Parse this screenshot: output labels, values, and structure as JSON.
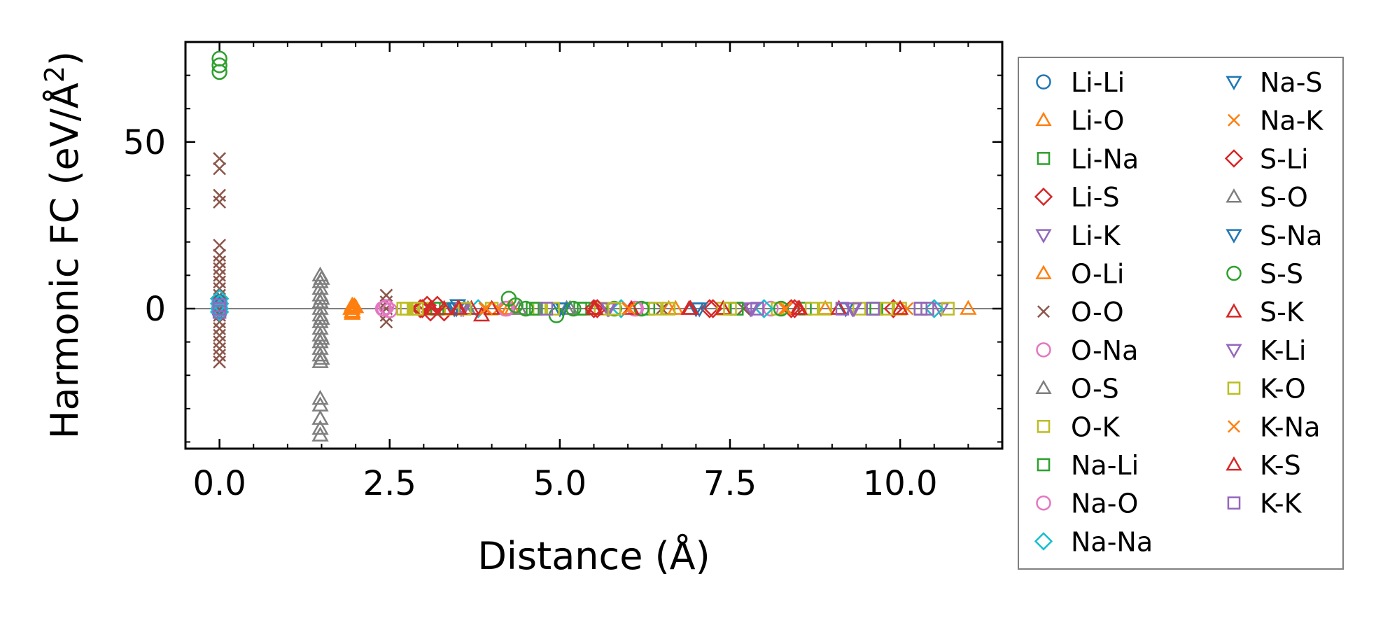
{
  "chart_data": {
    "type": "scatter",
    "xlabel": "Distance (Å)",
    "ylabel": "Harmonic FC (eV/Å²)",
    "ylabel_base": "Harmonic FC (eV/Å",
    "ylabel_sup": "2",
    "ylabel_close": ")",
    "xlim": [
      -0.5,
      11.5
    ],
    "ylim": [
      -42,
      80
    ],
    "xticks": [
      0.0,
      2.5,
      5.0,
      7.5,
      10.0
    ],
    "xtick_labels": [
      "0.0",
      "2.5",
      "5.0",
      "7.5",
      "10.0"
    ],
    "yticks": [
      0,
      50
    ],
    "ytick_labels": [
      "0",
      "50"
    ],
    "x_minor_step": 0.5,
    "y_minor_step": 10,
    "zero_line": true,
    "legend_position": "outside-right",
    "legend_columns": 2,
    "series": [
      {
        "name": "Li-Li",
        "marker": "circle",
        "color": "#1f77b4",
        "points": [
          [
            0,
            0
          ],
          [
            0,
            1
          ],
          [
            0,
            2
          ],
          [
            0,
            -1
          ],
          [
            0,
            0.5
          ],
          [
            0,
            1.5
          ]
        ]
      },
      {
        "name": "Li-O",
        "marker": "triangle-up",
        "color": "#ff7f0e",
        "points": [
          [
            1.95,
            0
          ],
          [
            1.95,
            -1
          ],
          [
            1.95,
            1
          ],
          [
            1.95,
            -1.5
          ],
          [
            2.0,
            0.5
          ],
          [
            4.25,
            0
          ],
          [
            6.6,
            0
          ],
          [
            7.4,
            0
          ],
          [
            9.1,
            0
          ],
          [
            11.0,
            0
          ]
        ]
      },
      {
        "name": "Li-Na",
        "marker": "square",
        "color": "#2ca02c",
        "points": [
          [
            3.15,
            0
          ],
          [
            4.6,
            0
          ],
          [
            5.3,
            0
          ],
          [
            6.3,
            0
          ],
          [
            7.6,
            0
          ],
          [
            8.6,
            0
          ],
          [
            9.6,
            0
          ],
          [
            10.3,
            0
          ]
        ]
      },
      {
        "name": "Li-S",
        "marker": "diamond",
        "color": "#d62728",
        "points": [
          [
            2.95,
            0
          ],
          [
            3.05,
            1
          ],
          [
            3.3,
            -1
          ],
          [
            5.5,
            0
          ],
          [
            7.2,
            0
          ],
          [
            8.4,
            0
          ],
          [
            9.9,
            0
          ]
        ]
      },
      {
        "name": "Li-K",
        "marker": "triangle-down",
        "color": "#9467bd",
        "points": [
          [
            3.55,
            0
          ],
          [
            5.7,
            0
          ],
          [
            7.8,
            0
          ],
          [
            9.3,
            0
          ],
          [
            10.6,
            0
          ]
        ]
      },
      {
        "name": "O-Li",
        "marker": "triangle-up",
        "color": "#ff7f0e",
        "points": [
          [
            1.93,
            0
          ],
          [
            1.95,
            -0.8
          ],
          [
            1.98,
            0.8
          ],
          [
            4.3,
            0
          ],
          [
            6.7,
            0
          ],
          [
            8.9,
            0
          ]
        ]
      },
      {
        "name": "O-O",
        "marker": "x",
        "color": "#8c564b",
        "points": [
          [
            0,
            45
          ],
          [
            0,
            42
          ],
          [
            0,
            34
          ],
          [
            0,
            32
          ],
          [
            0,
            19
          ],
          [
            0,
            16
          ],
          [
            0,
            14
          ],
          [
            0,
            12
          ],
          [
            0,
            10
          ],
          [
            0,
            8
          ],
          [
            0,
            6
          ],
          [
            0,
            4
          ],
          [
            0,
            2
          ],
          [
            0,
            0
          ],
          [
            0,
            -2
          ],
          [
            0,
            -4
          ],
          [
            0,
            -6
          ],
          [
            0,
            -8
          ],
          [
            0,
            -10
          ],
          [
            0,
            -12
          ],
          [
            0,
            -14
          ],
          [
            0,
            -16
          ],
          [
            2.45,
            4
          ],
          [
            2.45,
            2
          ],
          [
            2.45,
            0
          ],
          [
            2.45,
            -2
          ],
          [
            2.45,
            -4
          ],
          [
            4.1,
            0
          ],
          [
            6.5,
            0
          ],
          [
            7.7,
            0
          ]
        ]
      },
      {
        "name": "O-Na",
        "marker": "circle",
        "color": "#e377c2",
        "points": [
          [
            2.4,
            0
          ],
          [
            2.45,
            0.5
          ],
          [
            2.5,
            -0.5
          ],
          [
            4.2,
            0
          ],
          [
            6.1,
            0
          ],
          [
            8.1,
            0
          ]
        ]
      },
      {
        "name": "O-S",
        "marker": "triangle-up",
        "color": "#7f7f7f",
        "points": [
          [
            1.48,
            10
          ],
          [
            1.48,
            8
          ],
          [
            1.48,
            6
          ],
          [
            1.48,
            4
          ],
          [
            1.48,
            2
          ],
          [
            1.48,
            0
          ],
          [
            1.48,
            -2
          ],
          [
            1.48,
            -4
          ],
          [
            1.48,
            -6
          ],
          [
            1.48,
            -8
          ],
          [
            1.48,
            -10
          ],
          [
            1.48,
            -12
          ],
          [
            1.48,
            -14
          ],
          [
            1.48,
            -16
          ],
          [
            1.48,
            -27
          ],
          [
            1.48,
            -29
          ],
          [
            1.48,
            -33
          ],
          [
            1.48,
            -36
          ],
          [
            1.48,
            -38
          ],
          [
            3.6,
            0
          ],
          [
            4.4,
            0
          ],
          [
            5.1,
            0
          ]
        ]
      },
      {
        "name": "O-K",
        "marker": "square",
        "color": "#bcbd22",
        "points": [
          [
            2.7,
            0
          ],
          [
            2.85,
            0
          ],
          [
            3.0,
            0
          ],
          [
            3.4,
            0
          ],
          [
            4.0,
            0
          ],
          [
            4.7,
            0
          ],
          [
            5.6,
            0
          ],
          [
            6.4,
            0
          ],
          [
            7.4,
            0
          ],
          [
            8.2,
            0
          ],
          [
            8.9,
            0
          ],
          [
            9.4,
            0
          ],
          [
            10.0,
            0
          ],
          [
            10.7,
            0
          ]
        ]
      },
      {
        "name": "Na-Li",
        "marker": "square",
        "color": "#2ca02c",
        "points": [
          [
            3.2,
            0
          ],
          [
            4.65,
            0
          ],
          [
            5.35,
            0
          ],
          [
            7.6,
            0
          ],
          [
            9.65,
            0
          ]
        ]
      },
      {
        "name": "Na-O",
        "marker": "circle",
        "color": "#e377c2",
        "points": [
          [
            2.42,
            0
          ],
          [
            4.22,
            0
          ],
          [
            6.12,
            0
          ]
        ]
      },
      {
        "name": "Na-Na",
        "marker": "diamond",
        "color": "#17becf",
        "points": [
          [
            0,
            0
          ],
          [
            0,
            1.5
          ],
          [
            0,
            3
          ],
          [
            0,
            -1
          ],
          [
            3.8,
            0
          ],
          [
            5.9,
            0
          ],
          [
            8.0,
            0
          ],
          [
            10.5,
            0
          ]
        ]
      },
      {
        "name": "Na-S",
        "marker": "triangle-down",
        "color": "#1f77b4",
        "points": [
          [
            3.45,
            0
          ],
          [
            3.5,
            1
          ],
          [
            5.0,
            0
          ],
          [
            7.0,
            0
          ],
          [
            9.2,
            0
          ]
        ]
      },
      {
        "name": "Na-K",
        "marker": "x",
        "color": "#ff7f0e",
        "points": [
          [
            3.9,
            0
          ],
          [
            4.1,
            0
          ],
          [
            6.0,
            0
          ],
          [
            8.3,
            0
          ],
          [
            10.1,
            0
          ]
        ]
      },
      {
        "name": "S-Li",
        "marker": "diamond",
        "color": "#d62728",
        "points": [
          [
            2.98,
            0
          ],
          [
            3.1,
            -1
          ],
          [
            3.2,
            1
          ],
          [
            5.55,
            0
          ],
          [
            7.25,
            0
          ],
          [
            8.45,
            0
          ]
        ]
      },
      {
        "name": "S-O",
        "marker": "triangle-up",
        "color": "#7f7f7f",
        "points": [
          [
            1.5,
            9
          ],
          [
            1.5,
            3
          ],
          [
            1.5,
            -3
          ],
          [
            1.5,
            -9
          ],
          [
            1.5,
            -15
          ],
          [
            3.65,
            0
          ],
          [
            5.15,
            0
          ]
        ]
      },
      {
        "name": "S-Na",
        "marker": "triangle-down",
        "color": "#1f77b4",
        "points": [
          [
            3.48,
            0
          ],
          [
            5.05,
            0
          ],
          [
            7.05,
            0
          ]
        ]
      },
      {
        "name": "S-S",
        "marker": "circle",
        "color": "#2ca02c",
        "points": [
          [
            0,
            75
          ],
          [
            0,
            73
          ],
          [
            0,
            71
          ],
          [
            4.25,
            3
          ],
          [
            4.35,
            1
          ],
          [
            4.5,
            0
          ],
          [
            4.95,
            -2
          ],
          [
            5.2,
            0
          ],
          [
            5.8,
            0
          ],
          [
            6.2,
            0
          ],
          [
            8.25,
            0
          ]
        ]
      },
      {
        "name": "S-K",
        "marker": "triangle-up",
        "color": "#d62728",
        "points": [
          [
            3.1,
            0
          ],
          [
            3.3,
            0
          ],
          [
            3.5,
            0
          ],
          [
            3.7,
            0
          ],
          [
            3.85,
            -2
          ],
          [
            4.0,
            0
          ],
          [
            5.5,
            0
          ],
          [
            6.05,
            0
          ],
          [
            6.9,
            0
          ],
          [
            7.4,
            0
          ],
          [
            8.5,
            0
          ],
          [
            10.0,
            0
          ]
        ]
      },
      {
        "name": "K-Li",
        "marker": "triangle-down",
        "color": "#9467bd",
        "points": [
          [
            3.58,
            0
          ],
          [
            5.72,
            0
          ],
          [
            7.82,
            0
          ],
          [
            9.32,
            0
          ]
        ]
      },
      {
        "name": "K-O",
        "marker": "square",
        "color": "#bcbd22",
        "points": [
          [
            2.75,
            0
          ],
          [
            2.9,
            0
          ],
          [
            3.6,
            0
          ],
          [
            4.9,
            0
          ],
          [
            5.8,
            0
          ],
          [
            6.6,
            0
          ],
          [
            7.5,
            0
          ],
          [
            8.7,
            0
          ],
          [
            9.8,
            0
          ],
          [
            10.4,
            0
          ]
        ]
      },
      {
        "name": "K-Na",
        "marker": "x",
        "color": "#ff7f0e",
        "points": [
          [
            3.92,
            0
          ],
          [
            6.02,
            0
          ],
          [
            8.32,
            0
          ]
        ]
      },
      {
        "name": "K-S",
        "marker": "triangle-up",
        "color": "#d62728",
        "points": [
          [
            3.12,
            0
          ],
          [
            3.52,
            0
          ],
          [
            5.52,
            0
          ],
          [
            6.92,
            0
          ],
          [
            8.52,
            0
          ],
          [
            9.1,
            0
          ]
        ]
      },
      {
        "name": "K-K",
        "marker": "square",
        "color": "#9467bd",
        "points": [
          [
            0,
            0
          ],
          [
            0,
            1
          ],
          [
            0,
            -1
          ],
          [
            4.8,
            0
          ],
          [
            7.9,
            0
          ],
          [
            9.15,
            0
          ],
          [
            9.6,
            0
          ],
          [
            10.3,
            0
          ],
          [
            10.4,
            0
          ]
        ]
      }
    ]
  }
}
